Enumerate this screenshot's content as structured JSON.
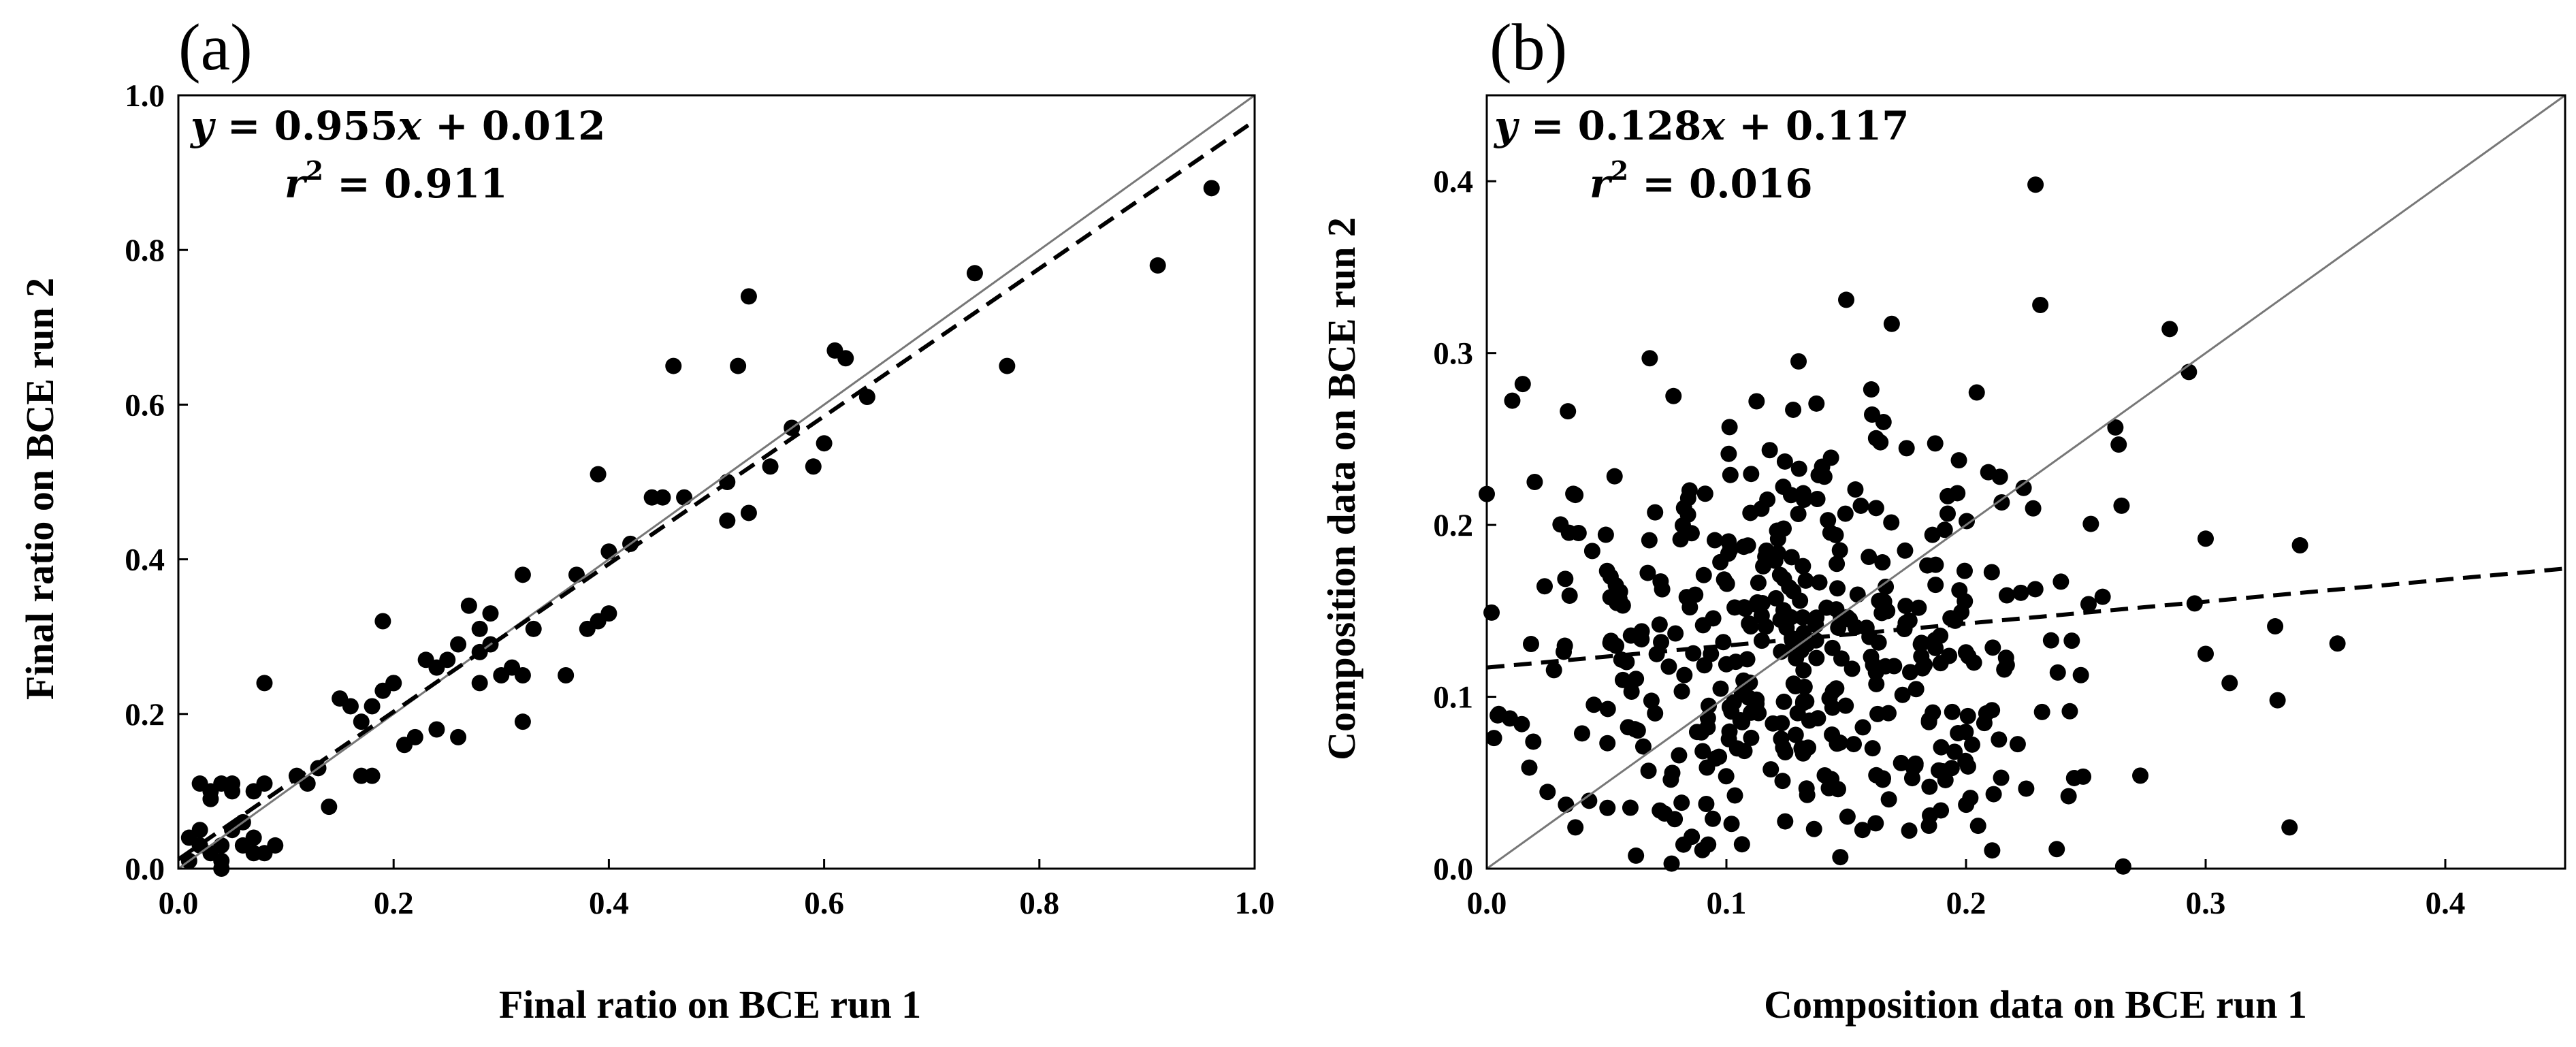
{
  "chart_data": [
    {
      "type": "scatter",
      "panel_label": "(a)",
      "xlabel": "Final ratio on BCE run 1",
      "ylabel": "Final ratio on BCE run 2",
      "xlim": [
        0,
        1.0
      ],
      "ylim": [
        0,
        1.0
      ],
      "xticks": [
        "0.0",
        "0.2",
        "0.4",
        "0.6",
        "0.8",
        "1.0"
      ],
      "yticks": [
        "0.0",
        "0.2",
        "0.4",
        "0.6",
        "0.8",
        "1.0"
      ],
      "xtick_values": [
        0,
        0.2,
        0.4,
        0.6,
        0.8,
        1.0
      ],
      "ytick_values": [
        0,
        0.2,
        0.4,
        0.6,
        0.8,
        1.0
      ],
      "equation": {
        "y": "y",
        "eq": " = 0.955",
        "x": "x",
        "rest": " + 0.012"
      },
      "r2": {
        "r": "r",
        "exp": "2",
        "rest": " = 0.911"
      },
      "fit": {
        "slope": 0.955,
        "intercept": 0.012
      },
      "identity_line": true,
      "points": [
        [
          0.01,
          0.01
        ],
        [
          0.01,
          0.04
        ],
        [
          0.02,
          0.03
        ],
        [
          0.02,
          0.05
        ],
        [
          0.02,
          0.11
        ],
        [
          0.03,
          0.02
        ],
        [
          0.03,
          0.09
        ],
        [
          0.03,
          0.1
        ],
        [
          0.04,
          0.0
        ],
        [
          0.04,
          0.01
        ],
        [
          0.04,
          0.03
        ],
        [
          0.04,
          0.11
        ],
        [
          0.05,
          0.05
        ],
        [
          0.05,
          0.1
        ],
        [
          0.05,
          0.11
        ],
        [
          0.06,
          0.03
        ],
        [
          0.06,
          0.06
        ],
        [
          0.07,
          0.02
        ],
        [
          0.07,
          0.04
        ],
        [
          0.07,
          0.1
        ],
        [
          0.08,
          0.02
        ],
        [
          0.08,
          0.11
        ],
        [
          0.08,
          0.24
        ],
        [
          0.09,
          0.03
        ],
        [
          0.11,
          0.12
        ],
        [
          0.12,
          0.11
        ],
        [
          0.13,
          0.13
        ],
        [
          0.14,
          0.08
        ],
        [
          0.15,
          0.22
        ],
        [
          0.16,
          0.21
        ],
        [
          0.17,
          0.12
        ],
        [
          0.17,
          0.19
        ],
        [
          0.18,
          0.12
        ],
        [
          0.18,
          0.21
        ],
        [
          0.19,
          0.23
        ],
        [
          0.19,
          0.32
        ],
        [
          0.2,
          0.24
        ],
        [
          0.2,
          0.24
        ],
        [
          0.21,
          0.16
        ],
        [
          0.22,
          0.17
        ],
        [
          0.23,
          0.27
        ],
        [
          0.24,
          0.18
        ],
        [
          0.24,
          0.26
        ],
        [
          0.25,
          0.27
        ],
        [
          0.26,
          0.17
        ],
        [
          0.26,
          0.29
        ],
        [
          0.27,
          0.34
        ],
        [
          0.28,
          0.28
        ],
        [
          0.28,
          0.31
        ],
        [
          0.28,
          0.24
        ],
        [
          0.29,
          0.29
        ],
        [
          0.29,
          0.33
        ],
        [
          0.3,
          0.25
        ],
        [
          0.31,
          0.26
        ],
        [
          0.32,
          0.38
        ],
        [
          0.32,
          0.19
        ],
        [
          0.32,
          0.25
        ],
        [
          0.33,
          0.31
        ],
        [
          0.36,
          0.25
        ],
        [
          0.37,
          0.38
        ],
        [
          0.38,
          0.31
        ],
        [
          0.39,
          0.32
        ],
        [
          0.39,
          0.51
        ],
        [
          0.4,
          0.33
        ],
        [
          0.4,
          0.41
        ],
        [
          0.42,
          0.42
        ],
        [
          0.44,
          0.48
        ],
        [
          0.45,
          0.48
        ],
        [
          0.46,
          0.65
        ],
        [
          0.47,
          0.48
        ],
        [
          0.51,
          0.45
        ],
        [
          0.51,
          0.5
        ],
        [
          0.52,
          0.65
        ],
        [
          0.53,
          0.46
        ],
        [
          0.53,
          0.74
        ],
        [
          0.55,
          0.52
        ],
        [
          0.57,
          0.57
        ],
        [
          0.59,
          0.52
        ],
        [
          0.6,
          0.55
        ],
        [
          0.61,
          0.67
        ],
        [
          0.62,
          0.66
        ],
        [
          0.64,
          0.61
        ],
        [
          0.74,
          0.77
        ],
        [
          0.77,
          0.65
        ],
        [
          0.91,
          0.78
        ],
        [
          0.96,
          0.88
        ]
      ]
    },
    {
      "type": "scatter",
      "panel_label": "(b)",
      "xlabel": "Composition data on BCE run 1",
      "ylabel": "Composition data on BCE run 2",
      "xlim": [
        0,
        0.45
      ],
      "ylim": [
        0,
        0.45
      ],
      "xticks": [
        "0.0",
        "0.1",
        "0.2",
        "0.3",
        "0.4"
      ],
      "yticks": [
        "0.0",
        "0.1",
        "0.2",
        "0.3",
        "0.4"
      ],
      "xtick_values": [
        0,
        0.1,
        0.2,
        0.3,
        0.4
      ],
      "ytick_values": [
        0,
        0.1,
        0.2,
        0.3,
        0.4
      ],
      "equation": {
        "y": "y",
        "eq": " = 0.128",
        "x": "x",
        "rest": " + 0.117"
      },
      "r2": {
        "r": "r",
        "exp": "2",
        "rest": " = 0.016"
      },
      "fit": {
        "slope": 0.128,
        "intercept": 0.117
      },
      "identity_line": true,
      "highlight_points": [
        [
          0.229,
          0.398
        ],
        [
          0.231,
          0.328
        ],
        [
          0.15,
          0.331
        ],
        [
          0.169,
          0.317
        ],
        [
          0.285,
          0.314
        ],
        [
          0.293,
          0.289
        ],
        [
          0.068,
          0.297
        ],
        [
          0.015,
          0.282
        ],
        [
          0.0,
          0.218
        ],
        [
          0.335,
          0.024
        ],
        [
          0.355,
          0.131
        ],
        [
          0.329,
          0.141
        ],
        [
          0.33,
          0.098
        ],
        [
          0.31,
          0.108
        ],
        [
          0.3,
          0.192
        ],
        [
          0.3,
          0.125
        ],
        [
          0.02,
          0.225
        ],
        [
          0.002,
          0.149
        ],
        [
          0.005,
          0.09
        ],
        [
          0.003,
          0.076
        ]
      ],
      "cloud": {
        "count": 430,
        "center_x": 0.13,
        "center_y": 0.13,
        "spread_x": 0.065,
        "spread_y": 0.075
      }
    }
  ]
}
